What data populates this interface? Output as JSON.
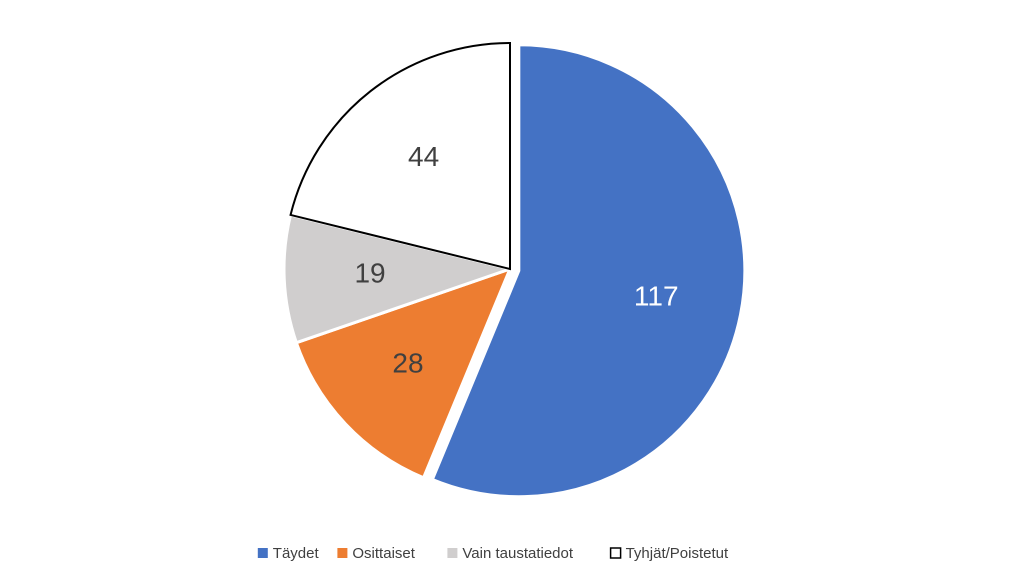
{
  "chart_data": {
    "type": "pie",
    "categories": [
      "Täydet",
      "Osittaiset",
      "Vain taustatiedot",
      "Tyhjät/Poistetut"
    ],
    "values": [
      117,
      28,
      19,
      44
    ],
    "colors": [
      "#4472c4",
      "#ed7d31",
      "#d0cece",
      "#ffffff"
    ],
    "legend": "bottom"
  }
}
